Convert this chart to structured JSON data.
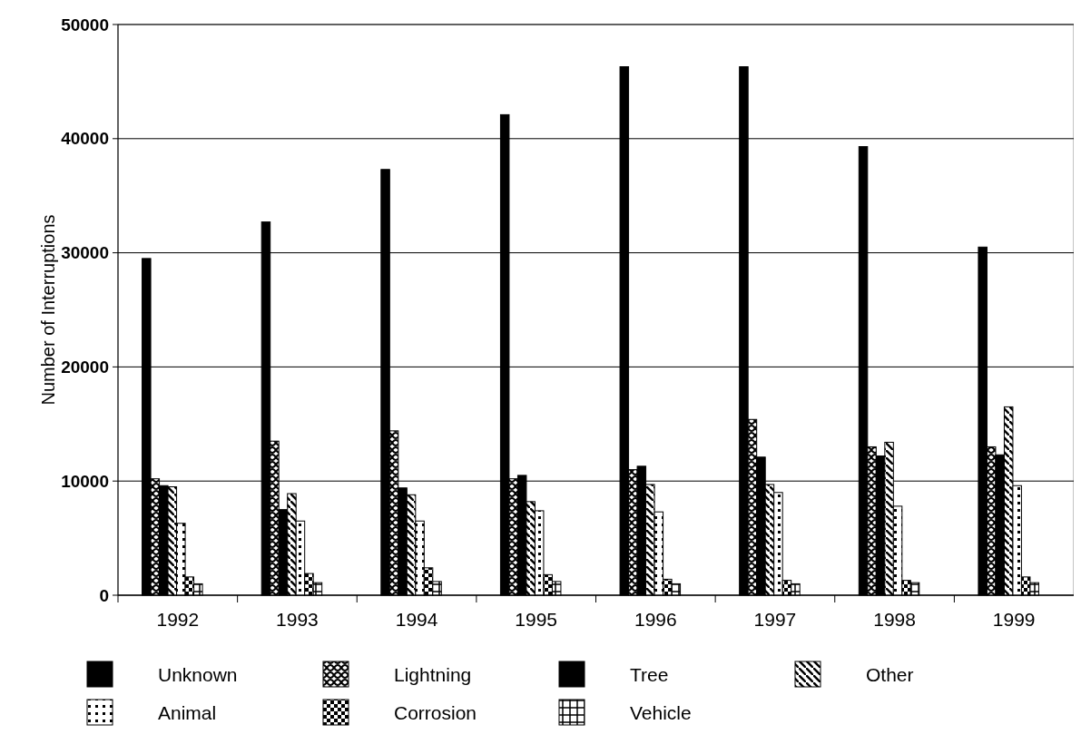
{
  "chart_data": {
    "type": "bar",
    "ylabel": "Number of Interruptions",
    "categories": [
      "1992",
      "1993",
      "1994",
      "1995",
      "1996",
      "1997",
      "1998",
      "1999"
    ],
    "series": [
      {
        "name": "Unknown",
        "color": "#000000",
        "values": [
          29500,
          32700,
          37300,
          42100,
          46300,
          46300,
          39300,
          30500
        ]
      },
      {
        "name": "Lightning",
        "color": "#000000",
        "values": [
          10200,
          13500,
          14400,
          10200,
          11000,
          15400,
          13000,
          13000
        ]
      },
      {
        "name": "Tree",
        "color": "#000000",
        "values": [
          9600,
          7500,
          9400,
          10500,
          11300,
          12100,
          12200,
          12300
        ]
      },
      {
        "name": "Other",
        "color": "#000000",
        "values": [
          9500,
          8900,
          8800,
          8200,
          9700,
          9700,
          13400,
          16500
        ]
      },
      {
        "name": "Animal",
        "color": "#000000",
        "values": [
          6300,
          6500,
          6500,
          7400,
          7300,
          9000,
          7800,
          9600
        ]
      },
      {
        "name": "Corrosion",
        "color": "#000000",
        "values": [
          1600,
          1900,
          2400,
          1800,
          1400,
          1300,
          1300,
          1600
        ]
      },
      {
        "name": "Vehicle",
        "color": "#000000",
        "values": [
          1000,
          1100,
          1200,
          1200,
          1000,
          1000,
          1100,
          1100
        ]
      }
    ],
    "ylim": [
      0,
      50000
    ],
    "yticks": [
      0,
      10000,
      20000,
      30000,
      40000,
      50000
    ],
    "grid": "y",
    "legend": "bottom"
  }
}
